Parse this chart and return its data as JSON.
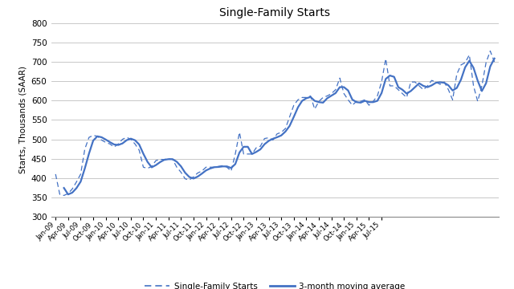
{
  "title": "Single-Family Starts",
  "ylabel": "Starts, Thousands (SAAR)",
  "ylim": [
    300,
    800
  ],
  "yticks": [
    300,
    350,
    400,
    450,
    500,
    550,
    600,
    650,
    700,
    750,
    800
  ],
  "line_color": "#4472c4",
  "bg_color": "#ffffff",
  "grid_color": "#bfbfbf",
  "legend_labels": [
    "Single-Family Starts",
    "3-month moving average"
  ],
  "x_labels": [
    "Jan-09",
    "Apr-09",
    "Jul-09",
    "Oct-09",
    "Jan-10",
    "Apr-10",
    "Jul-10",
    "Oct-10",
    "Jan-11",
    "Apr-11",
    "Jul-11",
    "Oct-11",
    "Jan-12",
    "Apr-12",
    "Jul-12",
    "Oct-12",
    "Jan-13",
    "Apr-13",
    "Jul-13",
    "Oct-13",
    "Jan-14",
    "Apr-14",
    "Jul-14",
    "Oct-14",
    "Jan-15",
    "Apr-15",
    "Jul-15"
  ],
  "x_label_indices": [
    0,
    3,
    6,
    9,
    12,
    15,
    18,
    21,
    24,
    27,
    30,
    33,
    36,
    39,
    42,
    45,
    48,
    51,
    54,
    57,
    60,
    63,
    66,
    69,
    72,
    75,
    78
  ],
  "monthly_values": [
    410,
    358,
    355,
    360,
    372,
    390,
    410,
    475,
    505,
    510,
    508,
    498,
    492,
    488,
    480,
    488,
    500,
    505,
    500,
    488,
    472,
    428,
    425,
    430,
    445,
    448,
    448,
    450,
    448,
    428,
    415,
    398,
    395,
    403,
    413,
    418,
    428,
    428,
    428,
    430,
    432,
    428,
    418,
    462,
    518,
    462,
    462,
    462,
    478,
    482,
    502,
    504,
    498,
    514,
    518,
    528,
    558,
    588,
    602,
    608,
    608,
    612,
    578,
    598,
    608,
    612,
    618,
    628,
    658,
    618,
    602,
    588,
    598,
    598,
    602,
    588,
    598,
    612,
    648,
    708,
    638,
    638,
    628,
    618,
    608,
    648,
    648,
    638,
    628,
    638,
    652,
    648,
    642,
    648,
    628,
    602,
    668,
    692,
    698,
    718,
    638,
    598,
    638,
    698,
    728,
    700
  ]
}
